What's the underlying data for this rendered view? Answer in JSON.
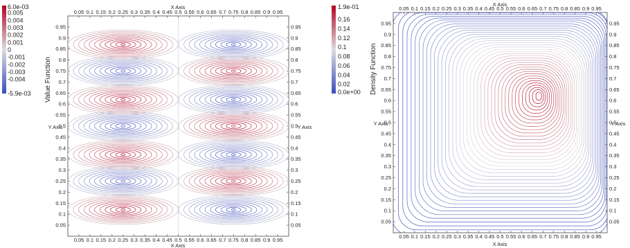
{
  "chart_data": [
    {
      "type": "contour",
      "title": "",
      "xlabel": "X Axis",
      "ylabel": "Y Axis",
      "xlim": [
        0,
        1
      ],
      "ylim": [
        0,
        1
      ],
      "x_ticks": [
        "0.05",
        "0.1",
        "0.15",
        "0.2",
        "0.25",
        "0.3",
        "0.35",
        "0.4",
        "0.45",
        "0.5",
        "0.55",
        "0.6",
        "0.65",
        "0.7",
        "0.75",
        "0.8",
        "0.85",
        "0.9",
        "0.95"
      ],
      "y_ticks": [
        "0.05",
        "0.1",
        "0.15",
        "0.2",
        "0.25",
        "0.3",
        "0.35",
        "0.4",
        "0.45",
        "0.5",
        "0.55",
        "0.6",
        "0.65",
        "0.7",
        "0.75",
        "0.8",
        "0.85",
        "0.9",
        "0.95"
      ],
      "colorbar": {
        "title": "Value Function",
        "max_label": "6.0e-03",
        "min_label": "-5.9e-03",
        "labels": [
          "0.005",
          "0.004",
          "0.003",
          "0.002",
          "0.001",
          "0",
          "-0.001",
          "-0.002",
          "-0.003",
          "-0.004"
        ],
        "label_values": [
          0.005,
          0.004,
          0.003,
          0.002,
          0.001,
          0,
          -0.001,
          -0.002,
          -0.003,
          -0.004
        ],
        "min": -0.0059,
        "max": 0.006,
        "colormap": [
          "#3b4cc0",
          "#dddddd",
          "#b40426"
        ]
      },
      "bands": [
        {
          "y_center": 0.12,
          "left_sign": "positive",
          "right_sign": "negative"
        },
        {
          "y_center": 0.25,
          "left_sign": "negative",
          "right_sign": "positive"
        },
        {
          "y_center": 0.37,
          "left_sign": "positive",
          "right_sign": "negative"
        },
        {
          "y_center": 0.5,
          "left_sign": "negative",
          "right_sign": "positive"
        },
        {
          "y_center": 0.62,
          "left_sign": "positive",
          "right_sign": "negative"
        },
        {
          "y_center": 0.75,
          "left_sign": "negative",
          "right_sign": "positive"
        },
        {
          "y_center": 0.87,
          "left_sign": "positive",
          "right_sign": "negative"
        }
      ]
    },
    {
      "type": "contour",
      "title": "",
      "xlabel": "X Axis",
      "ylabel": "Y Axis",
      "xlim": [
        0,
        1
      ],
      "ylim": [
        0,
        1
      ],
      "x_ticks": [
        "0.05",
        "0.1",
        "0.15",
        "0.2",
        "0.25",
        "0.3",
        "0.35",
        "0.4",
        "0.45",
        "0.5",
        "0.55",
        "0.6",
        "0.65",
        "0.7",
        "0.75",
        "0.8",
        "0.85",
        "0.9",
        "0.95"
      ],
      "y_ticks": [
        "0.05",
        "0.1",
        "0.15",
        "0.2",
        "0.25",
        "0.3",
        "0.35",
        "0.4",
        "0.45",
        "0.5",
        "0.55",
        "0.6",
        "0.65",
        "0.7",
        "0.75",
        "0.8",
        "0.85",
        "0.9",
        "0.95"
      ],
      "colorbar": {
        "title": "Density Function",
        "max_label": "1.9e-01",
        "min_label": "0.0e+00",
        "labels": [
          "0.16",
          "0.14",
          "0.12",
          "0.1",
          "0.08",
          "0.06",
          "0.04",
          "0.02"
        ],
        "label_values": [
          0.16,
          0.14,
          0.12,
          0.1,
          0.08,
          0.06,
          0.04,
          0.02
        ],
        "min": 0,
        "max": 0.19,
        "colormap": [
          "#3b4cc0",
          "#dddddd",
          "#b40426"
        ]
      },
      "peak": {
        "x": 0.68,
        "y": 0.62,
        "value": 0.19
      }
    }
  ]
}
